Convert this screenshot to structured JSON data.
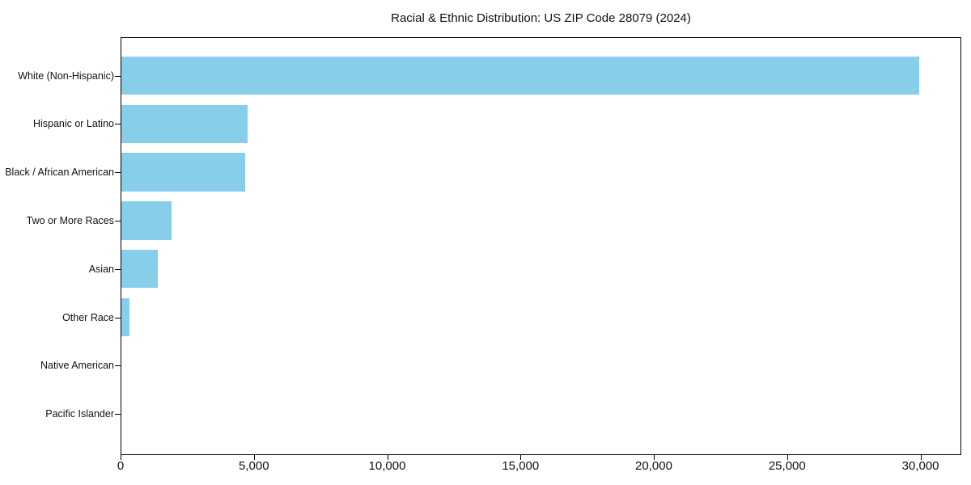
{
  "figure": {
    "background": "#ffffff"
  },
  "chart_data": {
    "type": "bar",
    "orientation": "horizontal",
    "title": "Racial & Ethnic Distribution: US ZIP Code 28079 (2024)",
    "xlabel": "",
    "ylabel": "",
    "categories": [
      "White (Non-Hispanic)",
      "Hispanic or Latino",
      "Black / African American",
      "Two or More Races",
      "Asian",
      "Other Race",
      "Native American",
      "Pacific Islander"
    ],
    "values": [
      29950,
      4730,
      4640,
      1880,
      1370,
      300,
      0,
      0
    ],
    "xlim": [
      0,
      31500
    ],
    "x_ticks": [
      0,
      5000,
      10000,
      15000,
      20000,
      25000,
      30000
    ],
    "x_tick_labels": [
      "0",
      "5,000",
      "10,000",
      "15,000",
      "20,000",
      "25,000",
      "30,000"
    ],
    "bar_color": "#87CEEB",
    "text_color": "#111111",
    "grid": false,
    "legend": false
  }
}
